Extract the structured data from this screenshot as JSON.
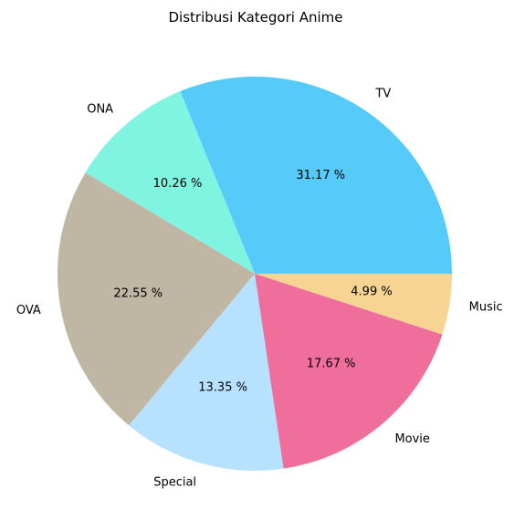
{
  "chart_data": {
    "type": "pie",
    "title": "Distribusi Kategori Anime",
    "slices": [
      {
        "label": "TV",
        "value": 31.17,
        "pct_label": "31.17 %",
        "color": "#56CBF9"
      },
      {
        "label": "ONA",
        "value": 10.26,
        "pct_label": "10.26 %",
        "color": "#7FF5E1"
      },
      {
        "label": "OVA",
        "value": 22.55,
        "pct_label": "22.55 %",
        "color": "#BFB7A4"
      },
      {
        "label": "Special",
        "value": 13.35,
        "pct_label": "13.35 %",
        "color": "#B6E1FF"
      },
      {
        "label": "Movie",
        "value": 17.67,
        "pct_label": "17.67 %",
        "color": "#F06E9C"
      },
      {
        "label": "Music",
        "value": 4.99,
        "pct_label": "4.99 %",
        "color": "#F6D492"
      }
    ],
    "start_angle_deg": 0,
    "direction": "counterclockwise"
  }
}
